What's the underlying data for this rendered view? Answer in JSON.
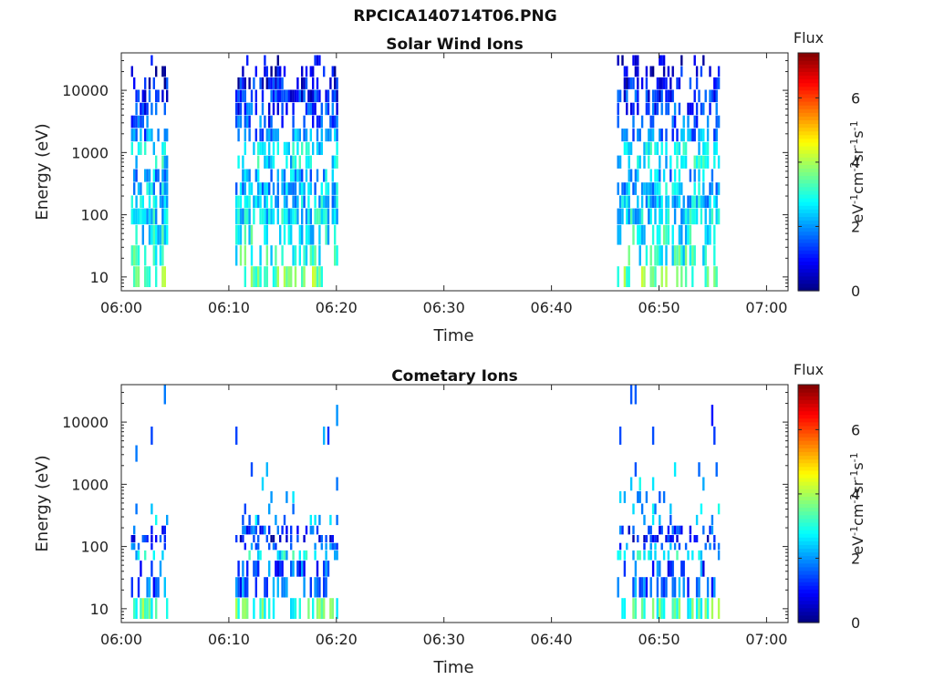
{
  "figure": {
    "title": "RPCICA140714T06.PNG"
  },
  "colorbar": {
    "label": "Flux",
    "ticks": [
      "0",
      "2",
      "4",
      "6"
    ],
    "unit_parts": [
      {
        "t": "eV",
        "sup": false
      },
      {
        "t": "-1",
        "sup": true
      },
      {
        "t": "cm",
        "sup": false
      },
      {
        "t": "-2",
        "sup": true
      },
      {
        "t": "sr",
        "sup": false
      },
      {
        "t": "-1",
        "sup": true
      },
      {
        "t": "s",
        "sup": false
      },
      {
        "t": "-1",
        "sup": true
      }
    ],
    "range": [
      0,
      7.4
    ],
    "colormap": "jet"
  },
  "chart_data": [
    {
      "type": "heatmap",
      "title": "Solar Wind Ions",
      "xlabel": "Time",
      "ylabel": "Energy (eV)",
      "x_tick_labels": [
        "06:00",
        "06:10",
        "06:20",
        "06:30",
        "06:40",
        "06:50",
        "07:00"
      ],
      "x_ticks_minutes": [
        0,
        10,
        20,
        30,
        40,
        50,
        60
      ],
      "xlim_minutes": [
        0,
        62
      ],
      "y_scale": "log",
      "y_tick_labels": [
        "10",
        "100",
        "1000",
        "10000"
      ],
      "y_ticks": [
        10,
        100,
        1000,
        10000
      ],
      "ylim": [
        6,
        40000
      ],
      "active_intervals_minutes": [
        [
          0.9,
          4.2
        ],
        [
          10.6,
          20.1
        ],
        [
          46.1,
          55.5
        ]
      ],
      "energy_bins_eV": [
        10,
        22,
        47,
        100,
        160,
        260,
        420,
        700,
        1150,
        1900,
        3100,
        5000,
        8000,
        13000,
        20000,
        30000
      ],
      "flux_level_by_bin": [
        3.6,
        3.0,
        2.8,
        2.6,
        2.4,
        2.3,
        2.2,
        2.7,
        2.5,
        1.9,
        1.5,
        1.3,
        1.1,
        0.9,
        0.7,
        0.5
      ],
      "fill_probability_by_bin": [
        0.55,
        0.45,
        0.6,
        0.75,
        0.7,
        0.65,
        0.45,
        0.4,
        0.45,
        0.5,
        0.5,
        0.5,
        0.5,
        0.45,
        0.35,
        0.15
      ]
    },
    {
      "type": "heatmap",
      "title": "Cometary Ions",
      "xlabel": "Time",
      "ylabel": "Energy (eV)",
      "x_tick_labels": [
        "06:00",
        "06:10",
        "06:20",
        "06:30",
        "06:40",
        "06:50",
        "07:00"
      ],
      "x_ticks_minutes": [
        0,
        10,
        20,
        30,
        40,
        50,
        60
      ],
      "xlim_minutes": [
        0,
        62
      ],
      "y_scale": "log",
      "y_tick_labels": [
        "10",
        "100",
        "1000",
        "10000"
      ],
      "y_ticks": [
        10,
        100,
        1000,
        10000
      ],
      "ylim": [
        6,
        40000
      ],
      "active_intervals_minutes": [
        [
          0.9,
          4.2
        ],
        [
          10.6,
          20.1
        ],
        [
          46.1,
          55.5
        ]
      ],
      "energy_bins_eV": [
        10,
        22,
        47,
        75,
        100,
        130,
        180,
        260,
        400,
        600,
        1000,
        1700,
        3000,
        6000,
        12000,
        30000
      ],
      "flux_level_by_bin": [
        3.3,
        1.6,
        1.5,
        2.6,
        1.8,
        0.9,
        1.3,
        2.1,
        2.2,
        2.3,
        2.3,
        2.0,
        1.6,
        1.5,
        1.4,
        1.3
      ],
      "fill_probability_by_bin": [
        0.5,
        0.45,
        0.3,
        0.35,
        0.4,
        0.35,
        0.3,
        0.15,
        0.08,
        0.07,
        0.06,
        0.05,
        0.04,
        0.03,
        0.03,
        0.02
      ]
    }
  ]
}
